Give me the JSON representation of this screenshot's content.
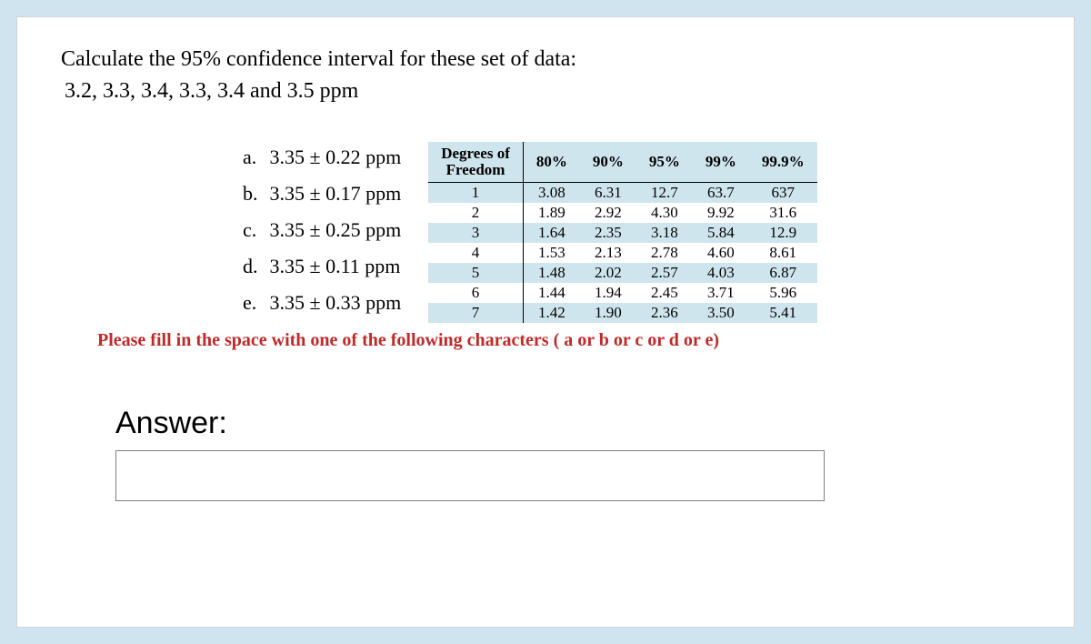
{
  "question": {
    "title": "Calculate the 95% confidence interval for these set of data:",
    "data_line": "3.2, 3.3, 3.4, 3.3, 3.4 and 3.5 ppm"
  },
  "options": [
    {
      "letter": "a.",
      "text": "3.35 ± 0.22 ppm"
    },
    {
      "letter": "b.",
      "text": "3.35 ± 0.17 ppm"
    },
    {
      "letter": "c.",
      "text": "3.35 ± 0.25 ppm"
    },
    {
      "letter": "d.",
      "text": "3.35 ± 0.11 ppm"
    },
    {
      "letter": "e.",
      "text": "3.35 ± 0.33 ppm"
    }
  ],
  "t_table": {
    "header_dof_line1": "Degrees of",
    "header_dof_line2": "Freedom",
    "columns": [
      "80%",
      "90%",
      "95%",
      "99%",
      "99.9%"
    ],
    "rows": [
      {
        "dof": "1",
        "vals": [
          "3.08",
          "6.31",
          "12.7",
          "63.7",
          "637"
        ]
      },
      {
        "dof": "2",
        "vals": [
          "1.89",
          "2.92",
          "4.30",
          "9.92",
          "31.6"
        ]
      },
      {
        "dof": "3",
        "vals": [
          "1.64",
          "2.35",
          "3.18",
          "5.84",
          "12.9"
        ]
      },
      {
        "dof": "4",
        "vals": [
          "1.53",
          "2.13",
          "2.78",
          "4.60",
          "8.61"
        ]
      },
      {
        "dof": "5",
        "vals": [
          "1.48",
          "2.02",
          "2.57",
          "4.03",
          "6.87"
        ]
      },
      {
        "dof": "6",
        "vals": [
          "1.44",
          "1.94",
          "2.45",
          "3.71",
          "5.96"
        ]
      },
      {
        "dof": "7",
        "vals": [
          "1.42",
          "1.90",
          "2.36",
          "3.50",
          "5.41"
        ]
      }
    ]
  },
  "instruction": "Please fill in the space with one of the following characters ( a or b or c or d or e)",
  "answer": {
    "label": "Answer:",
    "value": ""
  },
  "colors": {
    "page_bg": "#d0e4f0",
    "card_bg": "#ffffff",
    "table_band": "#cfe5ee",
    "instruction_color": "#bf2a2a"
  }
}
